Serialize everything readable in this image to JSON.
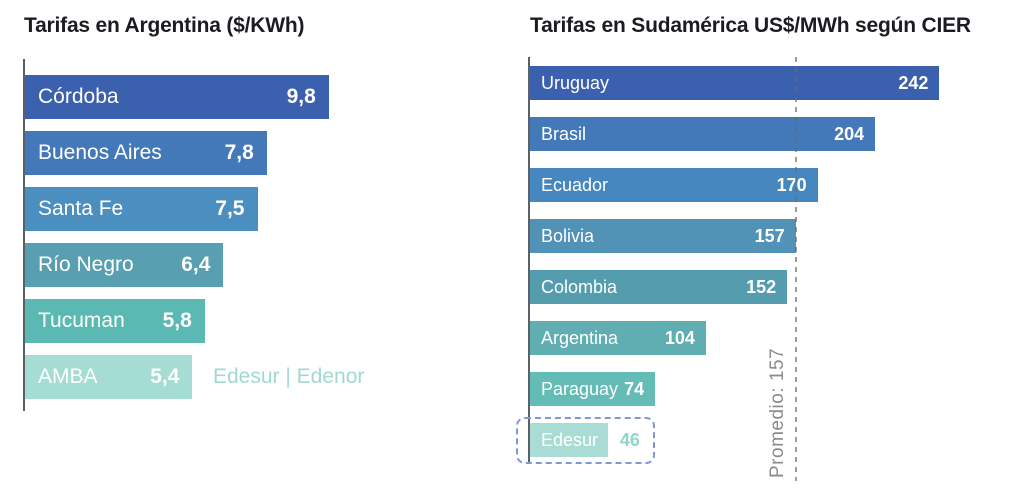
{
  "page": {
    "background": "#ffffff",
    "title_color": "#1b1b22",
    "axis_color": "#5a6168"
  },
  "chart_data": [
    {
      "type": "bar",
      "orientation": "horizontal",
      "title": "Tarifas en Argentina ($/KWh)",
      "categories": [
        "Córdoba",
        "Buenos Aires",
        "Santa Fe",
        "Río Negro",
        "Tucuman",
        "AMBA"
      ],
      "values": [
        9.8,
        7.8,
        7.5,
        6.4,
        5.8,
        5.4
      ],
      "value_labels": [
        "9,8",
        "7,8",
        "7,5",
        "6,4",
        "5,8",
        "5,4"
      ],
      "bar_colors": [
        "#3b60ae",
        "#4379b8",
        "#4b8fc0",
        "#58a0b1",
        "#5abab3",
        "#a5dcd4"
      ],
      "xlim": [
        0,
        10
      ],
      "grid": false,
      "annotation": {
        "text": "Edesur | Edenor",
        "row": 5,
        "color": "#a0d9d2"
      }
    },
    {
      "type": "bar",
      "orientation": "horizontal",
      "title": "Tarifas en Sudamérica US$/MWh según CIER",
      "categories": [
        "Uruguay",
        "Brasil",
        "Ecuador",
        "Bolivia",
        "Colombia",
        "Argentina",
        "Paraguay",
        "Edesur"
      ],
      "values": [
        242,
        204,
        170,
        157,
        152,
        104,
        74,
        46
      ],
      "value_labels": [
        "242",
        "204",
        "170",
        "157",
        "152",
        "104",
        "74",
        "46"
      ],
      "bar_colors": [
        "#3b60ae",
        "#4379b8",
        "#4787bf",
        "#5292b6",
        "#549cae",
        "#61aeb2",
        "#63bcb5",
        "#a9dcd4"
      ],
      "xlim": [
        0,
        250
      ],
      "grid": false,
      "reference_line": {
        "label": "Promedio: 157",
        "value": 157,
        "color": "#9a9a9a",
        "label_color": "#8b8b8b"
      },
      "highlight_box": {
        "row": 7,
        "border_color": "#7e97d8",
        "style": "dashed"
      },
      "outside_value": {
        "rows": [
          7
        ],
        "color": "#8fd5ca"
      }
    }
  ]
}
